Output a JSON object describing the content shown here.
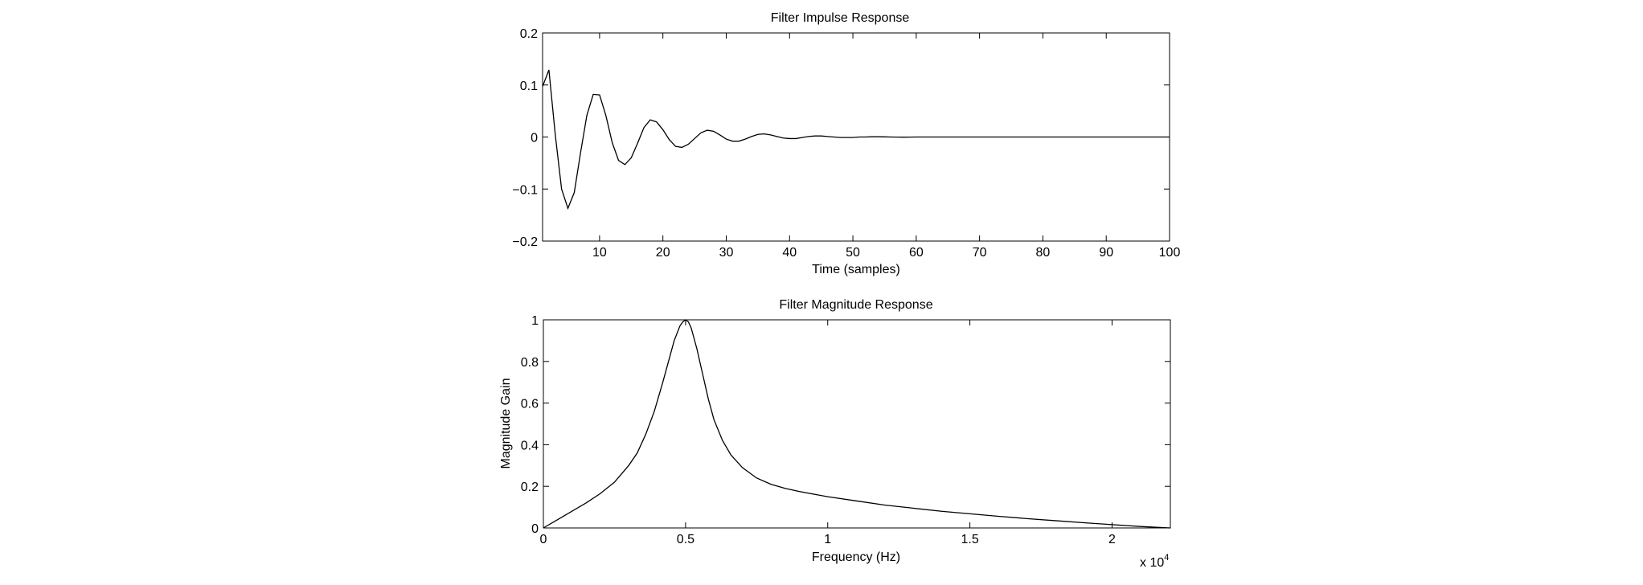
{
  "chart_data": [
    {
      "type": "line",
      "title": "Filter Impulse Response",
      "xlabel": "Time (samples)",
      "ylabel": "",
      "xlim": [
        1,
        100
      ],
      "ylim": [
        -0.2,
        0.2
      ],
      "xticks": [
        10,
        20,
        30,
        40,
        50,
        60,
        70,
        80,
        90,
        100
      ],
      "yticks": [
        -0.2,
        -0.1,
        0,
        0.1,
        0.2
      ],
      "ytick_labels": [
        "−0.2",
        "−0.1",
        "0",
        "0.1",
        "0.2"
      ],
      "grid": false,
      "series": [
        {
          "color": "#000000",
          "x": [
            1,
            2,
            3,
            4,
            5,
            6,
            7,
            8,
            9,
            10,
            11,
            12,
            13,
            14,
            15,
            16,
            17,
            18,
            19,
            20,
            21,
            22,
            23,
            24,
            25,
            26,
            27,
            28,
            29,
            30,
            31,
            32,
            33,
            34,
            35,
            36,
            37,
            38,
            39,
            40,
            41,
            42,
            43,
            44,
            45,
            46,
            47,
            48,
            49,
            50,
            51,
            52,
            53,
            54,
            55,
            56,
            57,
            58,
            59,
            60,
            62,
            64,
            66,
            68,
            70,
            75,
            80,
            85,
            90,
            95,
            100
          ],
          "y": [
            0.097,
            0.129,
            0.005,
            -0.1,
            -0.137,
            -0.107,
            -0.03,
            0.042,
            0.082,
            0.081,
            0.041,
            -0.011,
            -0.045,
            -0.053,
            -0.04,
            -0.012,
            0.018,
            0.033,
            0.029,
            0.014,
            -0.005,
            -0.018,
            -0.02,
            -0.014,
            -0.003,
            0.008,
            0.013,
            0.011,
            0.004,
            -0.004,
            -0.008,
            -0.008,
            -0.004,
            0.001,
            0.005,
            0.006,
            0.004,
            0.001,
            -0.002,
            -0.003,
            -0.003,
            -0.001,
            0.001,
            0.002,
            0.002,
            0.001,
            0.0,
            -0.001,
            -0.001,
            -0.001,
            0.0,
            0.0,
            0.0005,
            0.0005,
            0.0003,
            0.0,
            -0.0002,
            -0.0003,
            -0.0002,
            0.0,
            0.0,
            0.0,
            0.0,
            0.0,
            0.0,
            0.0,
            0.0,
            0.0,
            0.0,
            0.0,
            0.0
          ]
        }
      ]
    },
    {
      "type": "line",
      "title": "Filter Magnitude Response",
      "xlabel": "Frequency (Hz)",
      "ylabel": "Magnitude Gain",
      "x_multiplier_label": "x 10",
      "x_multiplier_exponent": "4",
      "xlim": [
        0,
        22050
      ],
      "ylim": [
        0,
        1
      ],
      "xticks": [
        0,
        5000,
        10000,
        15000,
        20000
      ],
      "xtick_labels": [
        "0",
        "0.5",
        "1",
        "1.5",
        "2"
      ],
      "yticks": [
        0,
        0.2,
        0.4,
        0.6,
        0.8,
        1
      ],
      "ytick_labels": [
        "0",
        "0.2",
        "0.4",
        "0.6",
        "0.8",
        "1"
      ],
      "grid": false,
      "series": [
        {
          "color": "#000000",
          "x": [
            0,
            500,
            1000,
            1500,
            2000,
            2500,
            3000,
            3300,
            3600,
            3900,
            4200,
            4400,
            4600,
            4800,
            4900,
            5000,
            5100,
            5200,
            5400,
            5600,
            5800,
            6000,
            6300,
            6600,
            7000,
            7500,
            8000,
            8500,
            9000,
            10000,
            11000,
            12000,
            13000,
            14000,
            15000,
            16000,
            17000,
            18000,
            19000,
            20000,
            21000,
            22050
          ],
          "y": [
            0,
            0.04,
            0.08,
            0.12,
            0.165,
            0.22,
            0.3,
            0.36,
            0.45,
            0.56,
            0.7,
            0.8,
            0.9,
            0.97,
            0.99,
            1.0,
            0.99,
            0.96,
            0.86,
            0.74,
            0.62,
            0.52,
            0.42,
            0.35,
            0.29,
            0.24,
            0.21,
            0.19,
            0.175,
            0.15,
            0.13,
            0.11,
            0.095,
            0.08,
            0.068,
            0.056,
            0.045,
            0.035,
            0.025,
            0.016,
            0.007,
            0.0
          ]
        }
      ]
    }
  ]
}
